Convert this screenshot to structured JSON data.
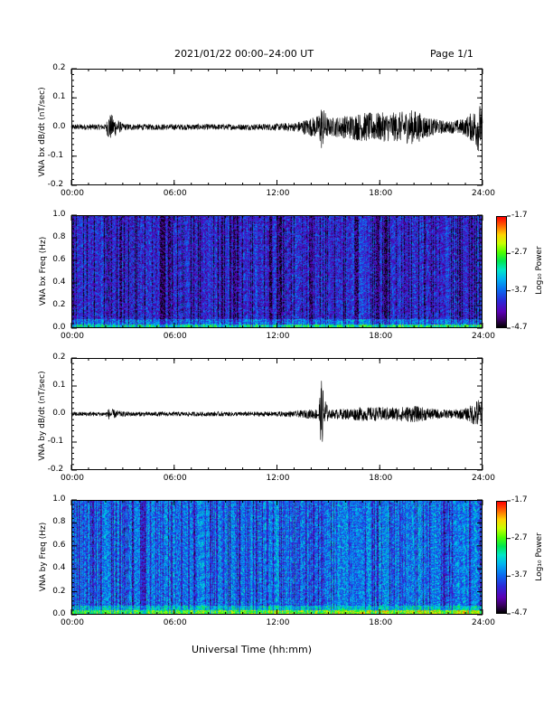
{
  "header": {
    "date_range": "2021/01/22  00:00–24:00 UT",
    "page": "Page 1/1"
  },
  "xlabel": "Universal Time (hh:mm)",
  "x_ticks": [
    "00:00",
    "06:00",
    "12:00",
    "18:00",
    "24:00"
  ],
  "colorbar": {
    "label": "Log₁₀ Power",
    "ticks": [
      "-1.7",
      "-2.7",
      "-3.7",
      "-4.7"
    ],
    "range": [
      -4.7,
      -1.7
    ]
  },
  "chart_data": [
    {
      "type": "line",
      "ylabel": "VNA bx dB/dt (nT/sec)",
      "ylim": [
        -0.2,
        0.2
      ],
      "y_ticks": [
        "0.2",
        "0.1",
        "0.0",
        "-0.1",
        "-0.2"
      ],
      "xlim_hours": [
        0,
        24
      ],
      "series": [
        {
          "x_hours": [
            0,
            1,
            2,
            2.2,
            3,
            4,
            6,
            8,
            10,
            12,
            13,
            14.4,
            14.6,
            15,
            16,
            17,
            18,
            19,
            20,
            21,
            22,
            23,
            23.5,
            23.8,
            24
          ],
          "amplitude": [
            0.01,
            0.01,
            0.01,
            0.05,
            0.012,
            0.01,
            0.01,
            0.01,
            0.01,
            0.012,
            0.015,
            0.04,
            0.08,
            0.03,
            0.04,
            0.05,
            0.05,
            0.05,
            0.06,
            0.03,
            0.02,
            0.03,
            0.06,
            0.09,
            0.05
          ]
        }
      ]
    },
    {
      "type": "heatmap",
      "ylabel": "VNA bx Freq (Hz)",
      "ylim": [
        0.0,
        1.0
      ],
      "y_ticks": [
        "1.0",
        "0.8",
        "0.6",
        "0.4",
        "0.2",
        "0.0"
      ],
      "z_range": [
        -4.7,
        -1.7
      ],
      "typical_log_power": -4.0
    },
    {
      "type": "line",
      "ylabel": "VNA by dB/dt (nT/sec)",
      "ylim": [
        -0.2,
        0.2
      ],
      "y_ticks": [
        "0.2",
        "0.1",
        "0.0",
        "-0.1",
        "-0.2"
      ],
      "xlim_hours": [
        0,
        24
      ],
      "series": [
        {
          "x_hours": [
            0,
            1,
            2,
            2.2,
            3,
            4,
            6,
            8,
            10,
            12,
            13,
            14.4,
            14.6,
            15,
            16,
            17,
            18,
            19,
            20,
            21,
            22,
            23,
            23.5,
            23.8,
            24
          ],
          "amplitude": [
            0.008,
            0.008,
            0.008,
            0.02,
            0.009,
            0.008,
            0.008,
            0.008,
            0.008,
            0.009,
            0.01,
            0.02,
            0.12,
            0.015,
            0.02,
            0.025,
            0.025,
            0.025,
            0.03,
            0.02,
            0.015,
            0.02,
            0.04,
            0.06,
            0.04
          ]
        }
      ]
    },
    {
      "type": "heatmap",
      "ylabel": "VNA by Freq (Hz)",
      "ylim": [
        0.0,
        1.0
      ],
      "y_ticks": [
        "1.0",
        "0.8",
        "0.6",
        "0.4",
        "0.2",
        "0.0"
      ],
      "z_range": [
        -4.7,
        -1.7
      ],
      "typical_log_power": -3.6
    }
  ]
}
